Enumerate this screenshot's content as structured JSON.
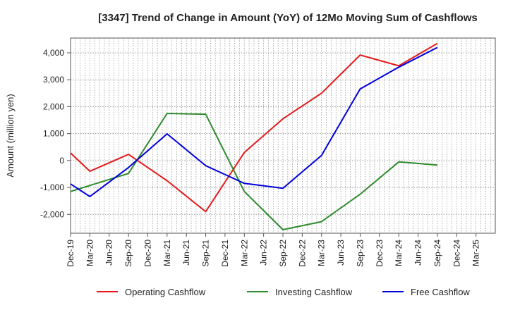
{
  "chart_data": {
    "type": "line",
    "title": "[3347]  Trend of Change in Amount (YoY) of 12Mo Moving Sum of Cashflows",
    "ylabel": "Amount (million yen)",
    "xlabel": "",
    "ylim": [
      -2700,
      4550
    ],
    "yticks": [
      -2000,
      -1000,
      0,
      1000,
      2000,
      3000,
      4000
    ],
    "ytick_labels": [
      "-2,000",
      "-1,000",
      "0",
      "1,000",
      "2,000",
      "3,000",
      "4,000"
    ],
    "grid": true,
    "legend_position": "bottom",
    "categories": [
      "Dec-19",
      "Mar-20",
      "Jun-20",
      "Sep-20",
      "Dec-20",
      "Mar-21",
      "Jun-21",
      "Sep-21",
      "Dec-21",
      "Mar-22",
      "Jun-22",
      "Sep-22",
      "Dec-22",
      "Mar-23",
      "Jun-23",
      "Sep-23",
      "Dec-23",
      "Mar-24",
      "Jun-24",
      "Sep-24",
      "Dec-24",
      "Mar-25"
    ],
    "series": [
      {
        "name": "Operating Cashflow",
        "color": "#e41a1c",
        "values": [
          280,
          -400,
          null,
          230,
          null,
          -750,
          null,
          -1900,
          null,
          300,
          null,
          1550,
          null,
          2500,
          null,
          3920,
          null,
          3520,
          null,
          4350,
          null,
          null
        ]
      },
      {
        "name": "Investing Cashflow",
        "color": "#2e8b2e",
        "values": [
          -1150,
          null,
          null,
          -480,
          null,
          1750,
          null,
          1720,
          null,
          -1150,
          null,
          -2570,
          null,
          -2270,
          null,
          -1250,
          null,
          -50,
          null,
          -170,
          null,
          null
        ]
      },
      {
        "name": "Free Cashflow",
        "color": "#0000dd",
        "values": [
          -870,
          -1340,
          null,
          -260,
          null,
          990,
          null,
          -190,
          null,
          -850,
          null,
          -1030,
          null,
          190,
          null,
          2660,
          null,
          3470,
          null,
          4200,
          null,
          null
        ]
      }
    ]
  }
}
